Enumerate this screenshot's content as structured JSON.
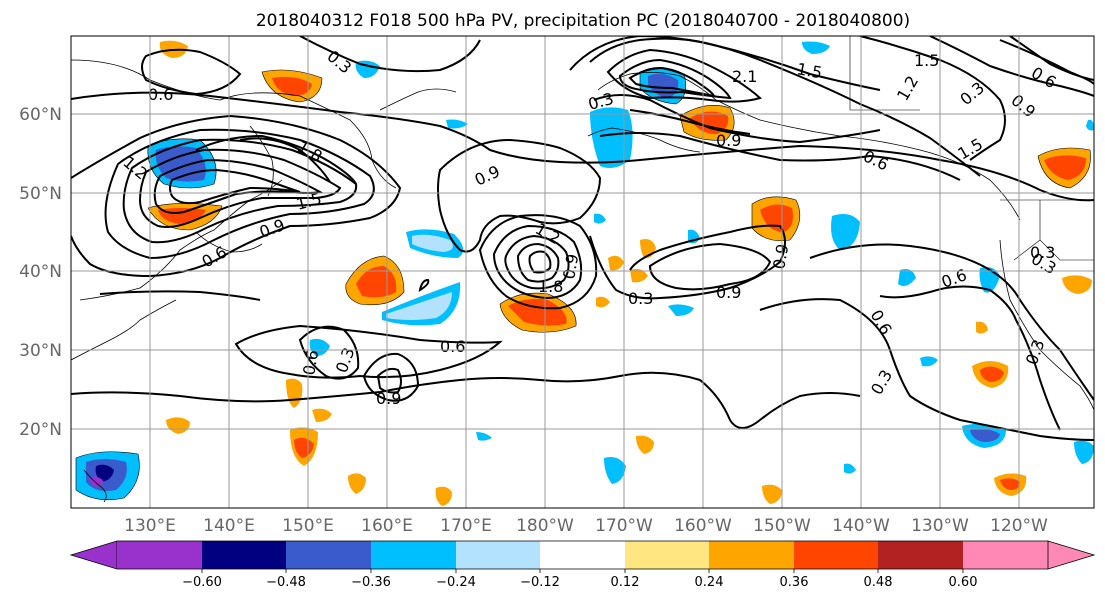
{
  "figure": {
    "title": "2018040312 F018 500 hPa PV, precipitation PC (2018040700 - 2018040800)"
  },
  "map": {
    "lon_labels": [
      "130°E",
      "140°E",
      "150°E",
      "160°E",
      "170°E",
      "180°W",
      "170°W",
      "160°W",
      "150°W",
      "140°W",
      "130°W",
      "120°W"
    ],
    "lat_labels": [
      "20°N",
      "30°N",
      "40°N",
      "50°N",
      "60°N"
    ],
    "contour_labels": [
      "0.6",
      "0.3",
      "1.2",
      "1.8",
      "1.5",
      "0.9",
      "0.9",
      "0.6",
      "0.3",
      "2.1",
      "1.5",
      "0.9",
      "1.5",
      "0.6",
      "0.9",
      "1.8",
      "1.2",
      "0.3",
      "0.9",
      "0.6",
      "0.3",
      "0.6",
      "0.9",
      "0.3",
      "0.6",
      "0.3",
      "1.5",
      "1.2",
      "0.6",
      "0.9",
      "0.3",
      "0.3",
      "0.6",
      "0.9",
      "0.3"
    ]
  },
  "colorbar": {
    "tick_labels": [
      "−0.60",
      "−0.48",
      "−0.36",
      "−0.24",
      "−0.12",
      "0.12",
      "0.24",
      "0.36",
      "0.48",
      "0.60"
    ],
    "colors": [
      "#9932CC",
      "#000080",
      "#3A5BCC",
      "#00BFFF",
      "#B3E2FF",
      "#FFFFFF",
      "#FFE680",
      "#FFA500",
      "#FF4500",
      "#B22222",
      "#FF88B4"
    ]
  }
}
